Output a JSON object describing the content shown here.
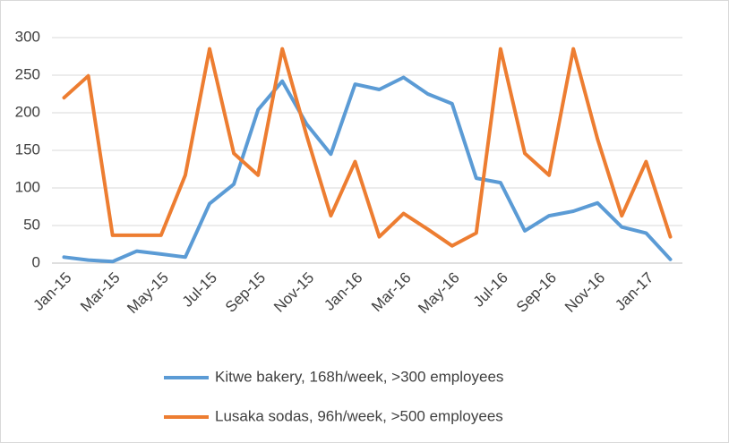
{
  "chart_data": {
    "type": "line",
    "categories": [
      "Jan-15",
      null,
      "Mar-15",
      null,
      "May-15",
      null,
      "Jul-15",
      null,
      "Sep-15",
      null,
      "Nov-15",
      null,
      "Jan-16",
      null,
      "Mar-16",
      null,
      "May-16",
      null,
      "Jul-16",
      null,
      "Sep-16",
      null,
      "Nov-16",
      null,
      "Jan-17",
      null
    ],
    "series": [
      {
        "name": "Kitwe bakery, 168h/week, >300 employees",
        "color": "#5b9bd5",
        "values": [
          8,
          4,
          2,
          16,
          12,
          8,
          79,
          105,
          204,
          242,
          185,
          145,
          238,
          231,
          247,
          225,
          212,
          113,
          107,
          43,
          63,
          69,
          80,
          48,
          40,
          5
        ]
      },
      {
        "name": "Lusaka sodas, 96h/week, >500 employees",
        "color": "#ed7d31",
        "values": [
          220,
          249,
          37,
          37,
          37,
          117,
          285,
          146,
          117,
          285,
          170,
          63,
          135,
          35,
          66,
          45,
          23,
          40,
          285,
          146,
          117,
          285,
          165,
          63,
          135,
          35
        ]
      }
    ],
    "ylim": [
      0,
      300
    ],
    "yticks": [
      0,
      50,
      100,
      150,
      200,
      250,
      300
    ],
    "grid": true,
    "legend": "bottom"
  }
}
